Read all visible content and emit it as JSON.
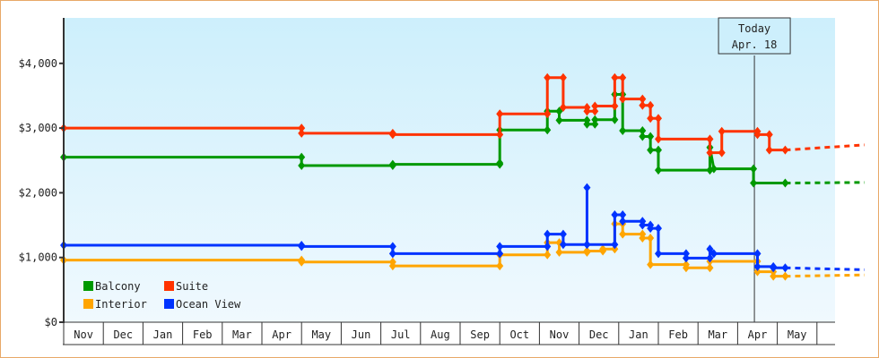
{
  "chart_data": {
    "type": "line",
    "title": "",
    "xlabel": "",
    "ylabel": "",
    "ylim": [
      0,
      4500
    ],
    "yticks": [
      0,
      1000,
      2000,
      3000,
      4000
    ],
    "ytick_labels": [
      "$0",
      "$1,000",
      "$2,000",
      "$3,000",
      "$4,000"
    ],
    "x_month_labels": [
      "Nov",
      "Dec",
      "Jan",
      "Feb",
      "Mar",
      "Apr",
      "May",
      "Jun",
      "Jul",
      "Aug",
      "Sep",
      "Oct",
      "Nov",
      "Dec",
      "Jan",
      "Feb",
      "Mar",
      "Apr",
      "May"
    ],
    "grid": false,
    "legend_position": "lower-left",
    "today_marker": {
      "label_line1": "Today",
      "label_line2": "Apr. 18",
      "month_index": 17.4
    },
    "series": [
      {
        "name": "Balcony",
        "color": "#009900",
        "points": [
          [
            0,
            2550
          ],
          [
            6,
            2550
          ],
          [
            6,
            2420
          ],
          [
            8.3,
            2420
          ],
          [
            8.3,
            2440
          ],
          [
            11,
            2440
          ],
          [
            11,
            2460
          ],
          [
            11,
            2970
          ],
          [
            12.2,
            2970
          ],
          [
            12.2,
            3260
          ],
          [
            12.5,
            3260
          ],
          [
            12.5,
            3120
          ],
          [
            13.2,
            3120
          ],
          [
            13.2,
            3060
          ],
          [
            13.4,
            3060
          ],
          [
            13.4,
            3130
          ],
          [
            13.9,
            3130
          ],
          [
            13.9,
            3520
          ],
          [
            14.1,
            3520
          ],
          [
            14.1,
            2960
          ],
          [
            14.6,
            2960
          ],
          [
            14.6,
            2870
          ],
          [
            14.8,
            2870
          ],
          [
            14.8,
            2660
          ],
          [
            15,
            2660
          ],
          [
            15,
            2350
          ],
          [
            16.3,
            2350
          ],
          [
            16.3,
            2700
          ],
          [
            16.4,
            2370
          ],
          [
            17.4,
            2370
          ],
          [
            17.4,
            2150
          ],
          [
            18.2,
            2150
          ]
        ],
        "forecast": [
          [
            18.2,
            2150
          ],
          [
            20.2,
            2160
          ]
        ]
      },
      {
        "name": "Suite",
        "color": "#ff3300",
        "points": [
          [
            0,
            3000
          ],
          [
            6,
            3000
          ],
          [
            6,
            2920
          ],
          [
            8.3,
            2920
          ],
          [
            8.3,
            2900
          ],
          [
            11,
            2900
          ],
          [
            11,
            3220
          ],
          [
            12.2,
            3220
          ],
          [
            12.2,
            3780
          ],
          [
            12.6,
            3780
          ],
          [
            12.6,
            3320
          ],
          [
            13.2,
            3320
          ],
          [
            13.2,
            3260
          ],
          [
            13.4,
            3260
          ],
          [
            13.4,
            3340
          ],
          [
            13.9,
            3340
          ],
          [
            13.9,
            3780
          ],
          [
            14.1,
            3780
          ],
          [
            14.1,
            3450
          ],
          [
            14.6,
            3450
          ],
          [
            14.6,
            3350
          ],
          [
            14.8,
            3350
          ],
          [
            14.8,
            3150
          ],
          [
            15,
            3150
          ],
          [
            15,
            2830
          ],
          [
            16.3,
            2830
          ],
          [
            16.3,
            2620
          ],
          [
            16.6,
            2620
          ],
          [
            16.6,
            2950
          ],
          [
            17.5,
            2950
          ],
          [
            17.5,
            2900
          ],
          [
            17.8,
            2900
          ],
          [
            17.8,
            2660
          ],
          [
            18.2,
            2660
          ]
        ],
        "forecast": [
          [
            18.2,
            2660
          ],
          [
            20.2,
            2740
          ]
        ]
      },
      {
        "name": "Interior",
        "color": "#ffa500",
        "points": [
          [
            0,
            960
          ],
          [
            6,
            960
          ],
          [
            6,
            930
          ],
          [
            8.3,
            930
          ],
          [
            8.3,
            870
          ],
          [
            11,
            870
          ],
          [
            11,
            1040
          ],
          [
            12.2,
            1040
          ],
          [
            12.2,
            1230
          ],
          [
            12.5,
            1230
          ],
          [
            12.5,
            1080
          ],
          [
            13.2,
            1080
          ],
          [
            13.2,
            1100
          ],
          [
            13.6,
            1100
          ],
          [
            13.6,
            1130
          ],
          [
            13.9,
            1130
          ],
          [
            13.9,
            1520
          ],
          [
            14.1,
            1520
          ],
          [
            14.1,
            1360
          ],
          [
            14.6,
            1360
          ],
          [
            14.6,
            1300
          ],
          [
            14.8,
            1300
          ],
          [
            14.8,
            890
          ],
          [
            15.7,
            890
          ],
          [
            15.7,
            840
          ],
          [
            16.3,
            840
          ],
          [
            16.3,
            940
          ],
          [
            17.5,
            940
          ],
          [
            17.5,
            780
          ],
          [
            17.9,
            780
          ],
          [
            17.9,
            710
          ],
          [
            18.2,
            710
          ]
        ],
        "forecast": [
          [
            18.2,
            710
          ],
          [
            20.2,
            730
          ]
        ]
      },
      {
        "name": "Ocean View",
        "color": "#0033ff",
        "points": [
          [
            0,
            1190
          ],
          [
            6,
            1190
          ],
          [
            6,
            1170
          ],
          [
            8.3,
            1170
          ],
          [
            8.3,
            1060
          ],
          [
            11,
            1060
          ],
          [
            11,
            1170
          ],
          [
            12.2,
            1170
          ],
          [
            12.2,
            1360
          ],
          [
            12.6,
            1360
          ],
          [
            12.6,
            1200
          ],
          [
            13.2,
            1200
          ],
          [
            13.2,
            2080
          ],
          [
            13.2,
            1200
          ],
          [
            13.9,
            1200
          ],
          [
            13.9,
            1660
          ],
          [
            14.1,
            1660
          ],
          [
            14.1,
            1560
          ],
          [
            14.6,
            1560
          ],
          [
            14.6,
            1500
          ],
          [
            14.8,
            1500
          ],
          [
            14.8,
            1450
          ],
          [
            15,
            1450
          ],
          [
            15,
            1060
          ],
          [
            15.7,
            1060
          ],
          [
            15.7,
            990
          ],
          [
            16.3,
            990
          ],
          [
            16.3,
            1130
          ],
          [
            16.4,
            1060
          ],
          [
            17.5,
            1060
          ],
          [
            17.5,
            860
          ],
          [
            17.9,
            860
          ],
          [
            17.9,
            840
          ],
          [
            18.2,
            840
          ]
        ],
        "forecast": [
          [
            18.2,
            840
          ],
          [
            20.2,
            810
          ]
        ]
      }
    ]
  },
  "legend": {
    "items": [
      {
        "label": "Balcony",
        "color": "#009900"
      },
      {
        "label": "Suite",
        "color": "#ff3300"
      },
      {
        "label": "Interior",
        "color": "#ffa500"
      },
      {
        "label": "Ocean View",
        "color": "#0033ff"
      }
    ]
  }
}
